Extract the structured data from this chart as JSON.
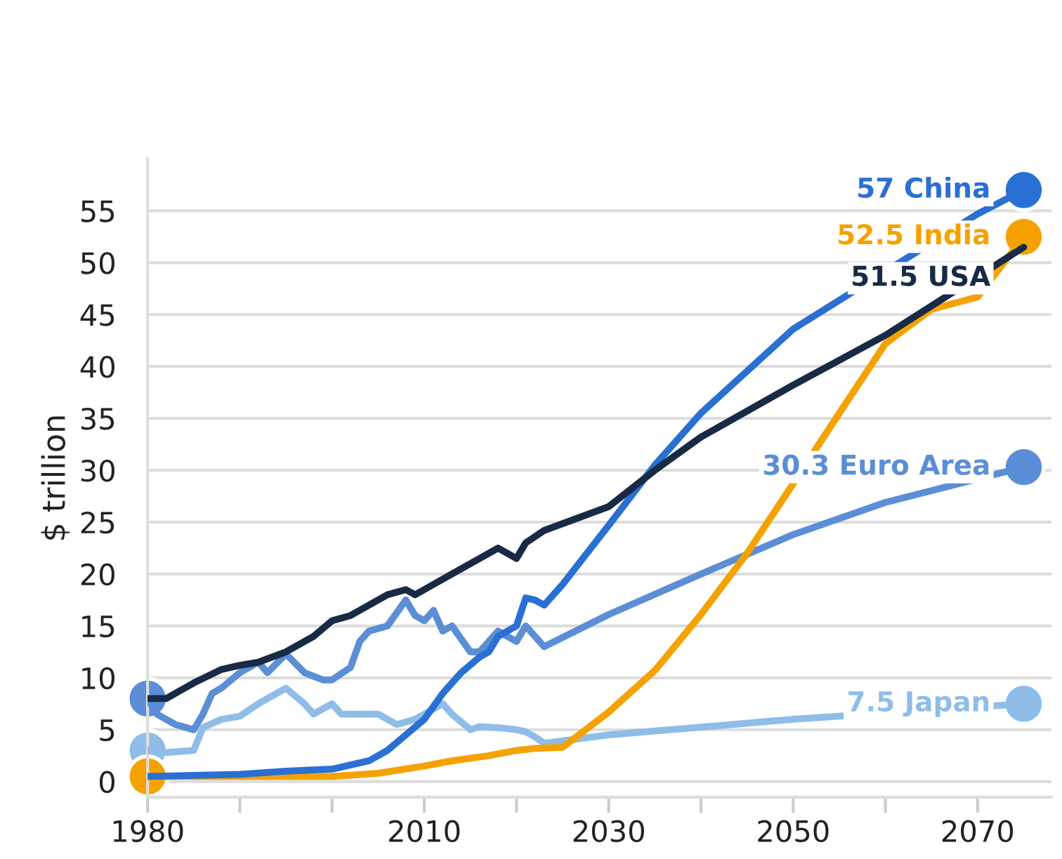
{
  "chart_data": {
    "type": "line",
    "ylabel": "$ trillion",
    "xlim": [
      1980,
      2078
    ],
    "ylim": [
      -1.5,
      60
    ],
    "xticks": [
      1980,
      {
        "value": 1990,
        "label": null
      },
      {
        "value": 2000,
        "label": null
      },
      2010,
      {
        "value": 2020,
        "label": null
      },
      2030,
      {
        "value": 2040,
        "label": null
      },
      2050,
      {
        "value": 2060,
        "label": null
      },
      2070
    ],
    "yticks": [
      0,
      5,
      10,
      15,
      20,
      25,
      30,
      35,
      40,
      45,
      50,
      55
    ],
    "grid": "y",
    "legend": false,
    "series": [
      {
        "color": "#8fbde8",
        "x": [
          1980,
          1982,
          1985,
          1986,
          1988,
          1990,
          1992,
          1995,
          1997,
          1998,
          2000,
          2001,
          2003,
          2005,
          2007,
          2009,
          2011,
          2012,
          2013,
          2015,
          2016,
          2018,
          2020,
          2021,
          2022,
          2023,
          2030,
          2050,
          2075
        ],
        "values": [
          3,
          2.8,
          3,
          5.2,
          6,
          6.3,
          7.5,
          9,
          7.5,
          6.5,
          7.5,
          6.5,
          6.5,
          6.5,
          5.5,
          6,
          7,
          7.5,
          6.5,
          5,
          5.3,
          5.2,
          5,
          4.8,
          4.3,
          3.7,
          4.5,
          6,
          7.5
        ],
        "value_labels": [
          null,
          null,
          null,
          null,
          null,
          null,
          null,
          null,
          null,
          null,
          null,
          null,
          null,
          null,
          null,
          null,
          null,
          null,
          null,
          null,
          null,
          null,
          null,
          null,
          null,
          null,
          null,
          null,
          "7.5 Japan"
        ]
      },
      {
        "color": "#5b8ed6",
        "x": [
          1980,
          1981,
          1983,
          1985,
          1986,
          1987,
          1988,
          1990,
          1992,
          1993,
          1995,
          1997,
          1999,
          2000,
          2002,
          2003,
          2004,
          2006,
          2008,
          2009,
          2010,
          2011,
          2012,
          2013,
          2015,
          2016,
          2017,
          2018,
          2019,
          2020,
          2021,
          2022,
          2023,
          2030,
          2040,
          2050,
          2060,
          2075
        ],
        "values": [
          8,
          6.5,
          5.5,
          5,
          6.5,
          8.5,
          9,
          10.5,
          11.5,
          10.5,
          12.3,
          10.5,
          9.8,
          9.8,
          11,
          13.5,
          14.5,
          15,
          17.5,
          16,
          15.5,
          16.5,
          14.5,
          15,
          12.5,
          12.5,
          13.5,
          14.5,
          14,
          13.5,
          15,
          14,
          13,
          16.1,
          20,
          23.8,
          26.9,
          30.3
        ],
        "value_labels": [
          null,
          null,
          null,
          null,
          null,
          null,
          null,
          null,
          null,
          null,
          null,
          null,
          null,
          null,
          null,
          null,
          null,
          null,
          null,
          null,
          null,
          null,
          null,
          null,
          null,
          null,
          null,
          null,
          null,
          null,
          null,
          null,
          null,
          null,
          null,
          null,
          null,
          "30.3 Euro Area"
        ]
      },
      {
        "color": "#f5a200",
        "x": [
          1980,
          1990,
          2000,
          2005,
          2010,
          2013,
          2017,
          2020,
          2022,
          2025,
          2030,
          2035,
          2040,
          2045,
          2050,
          2055,
          2060,
          2065,
          2070,
          2075
        ],
        "values": [
          0.5,
          0.5,
          0.5,
          0.8,
          1.5,
          2,
          2.5,
          3,
          3.2,
          3.3,
          6.7,
          10.7,
          16.1,
          22,
          28.7,
          35.5,
          42.2,
          45.5,
          46.7,
          52.5
        ],
        "value_labels": [
          null,
          null,
          null,
          null,
          null,
          null,
          null,
          null,
          null,
          null,
          null,
          null,
          null,
          null,
          null,
          null,
          null,
          null,
          null,
          "52.5 India"
        ]
      },
      {
        "color": "#2a6fd4",
        "x": [
          1980,
          1990,
          1995,
          2000,
          2004,
          2006,
          2008,
          2010,
          2012,
          2014,
          2016,
          2017,
          2018,
          2020,
          2021,
          2022,
          2023,
          2025,
          2030,
          2035,
          2040,
          2050,
          2070,
          2075
        ],
        "values": [
          0.5,
          0.7,
          1,
          1.2,
          2,
          3,
          4.5,
          6,
          8.5,
          10.5,
          12,
          12.5,
          14,
          15,
          17.7,
          17.5,
          17,
          19,
          24.7,
          30.5,
          35.5,
          43.6,
          54.7,
          57
        ],
        "value_labels": [
          null,
          null,
          null,
          null,
          null,
          null,
          null,
          null,
          null,
          null,
          null,
          null,
          null,
          null,
          null,
          null,
          null,
          null,
          null,
          null,
          null,
          null,
          null,
          "57 China"
        ]
      },
      {
        "color": "#182a45",
        "x": [
          1980,
          1982,
          1985,
          1988,
          1990,
          1992,
          1995,
          1998,
          2000,
          2002,
          2004,
          2006,
          2008,
          2009,
          2010,
          2012,
          2014,
          2016,
          2018,
          2020,
          2021,
          2023,
          2030,
          2035,
          2040,
          2050,
          2060,
          2075
        ],
        "values": [
          8,
          8,
          9.5,
          10.8,
          11.2,
          11.5,
          12.5,
          14,
          15.5,
          16,
          17,
          18,
          18.5,
          18,
          18.5,
          19.5,
          20.5,
          21.5,
          22.5,
          21.5,
          23,
          24.2,
          26.5,
          30,
          33.2,
          38.2,
          43,
          51.5
        ],
        "value_labels": [
          null,
          null,
          null,
          null,
          null,
          null,
          null,
          null,
          null,
          null,
          null,
          null,
          null,
          null,
          null,
          null,
          null,
          null,
          null,
          null,
          null,
          null,
          null,
          null,
          null,
          null,
          null,
          "51.5 USA"
        ]
      },
      {
        "type": "scatter",
        "color": "#8fbde8",
        "x": [
          1980,
          2075
        ],
        "values": [
          3,
          7.5
        ]
      },
      {
        "type": "scatter",
        "color": "#5b8ed6",
        "x": [
          1980,
          2075
        ],
        "values": [
          8,
          30.3
        ]
      },
      {
        "type": "scatter",
        "color": "#f5a200",
        "x": [
          1980,
          2075
        ],
        "values": [
          0.5,
          52.5
        ]
      },
      {
        "type": "scatter",
        "color": "#2a6fd4",
        "x": [
          2075
        ],
        "values": [
          57
        ]
      }
    ]
  }
}
